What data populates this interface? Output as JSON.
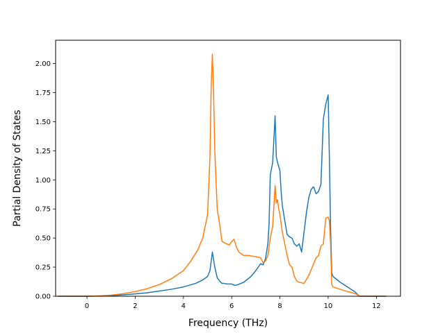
{
  "chart_data": {
    "type": "line",
    "title": "",
    "xlabel": "Frequency (THz)",
    "ylabel": "Partial Density of States",
    "xlim": [
      -1.3,
      13.0
    ],
    "ylim": [
      0.0,
      2.2
    ],
    "xticks": [
      0,
      2,
      4,
      6,
      8,
      10,
      12
    ],
    "yticks": [
      0.0,
      0.25,
      0.5,
      0.75,
      1.0,
      1.25,
      1.5,
      1.75,
      2.0
    ],
    "xtick_labels": [
      "0",
      "2",
      "4",
      "6",
      "8",
      "10",
      "12"
    ],
    "ytick_labels": [
      "0.00",
      "0.25",
      "0.50",
      "0.75",
      "1.00",
      "1.25",
      "1.50",
      "1.75",
      "2.00"
    ],
    "grid": false,
    "legend": "none",
    "series": [
      {
        "color": "#1f77b4",
        "x": [
          -1.2,
          0.0,
          0.5,
          1.0,
          1.5,
          2.0,
          2.5,
          3.0,
          3.5,
          4.0,
          4.5,
          4.8,
          5.0,
          5.1,
          5.2,
          5.3,
          5.4,
          5.5,
          5.6,
          5.7,
          5.8,
          6.0,
          6.1,
          6.2,
          6.5,
          6.8,
          7.0,
          7.2,
          7.3,
          7.4,
          7.5,
          7.55,
          7.6,
          7.7,
          7.8,
          7.85,
          7.9,
          8.0,
          8.05,
          8.1,
          8.2,
          8.3,
          8.4,
          8.5,
          8.6,
          8.7,
          8.8,
          8.9,
          9.0,
          9.1,
          9.2,
          9.3,
          9.4,
          9.5,
          9.6,
          9.7,
          9.8,
          9.9,
          10.0,
          10.05,
          10.1,
          10.15,
          10.2,
          10.5,
          10.8,
          11.1,
          11.3,
          12.4
        ],
        "y": [
          0.0,
          0.0,
          0.002,
          0.006,
          0.012,
          0.02,
          0.03,
          0.045,
          0.06,
          0.08,
          0.11,
          0.14,
          0.17,
          0.22,
          0.38,
          0.25,
          0.16,
          0.13,
          0.11,
          0.11,
          0.105,
          0.105,
          0.095,
          0.095,
          0.12,
          0.17,
          0.22,
          0.28,
          0.27,
          0.32,
          0.45,
          0.62,
          1.04,
          1.15,
          1.55,
          1.2,
          1.15,
          1.08,
          0.9,
          0.78,
          0.65,
          0.53,
          0.51,
          0.5,
          0.45,
          0.43,
          0.45,
          0.38,
          0.55,
          0.72,
          0.85,
          0.92,
          0.94,
          0.88,
          0.9,
          0.96,
          1.52,
          1.65,
          1.73,
          1.2,
          0.6,
          0.2,
          0.17,
          0.12,
          0.08,
          0.04,
          0.0,
          0.0
        ]
      },
      {
        "color": "#ff7f0e",
        "x": [
          -1.2,
          0.0,
          0.5,
          1.0,
          1.5,
          2.0,
          2.5,
          3.0,
          3.5,
          4.0,
          4.3,
          4.6,
          4.8,
          5.0,
          5.1,
          5.15,
          5.2,
          5.25,
          5.3,
          5.4,
          5.5,
          5.6,
          5.8,
          5.9,
          6.0,
          6.1,
          6.2,
          6.3,
          6.5,
          6.7,
          7.0,
          7.2,
          7.3,
          7.4,
          7.5,
          7.6,
          7.7,
          7.8,
          7.85,
          7.9,
          7.95,
          8.0,
          8.1,
          8.2,
          8.3,
          8.4,
          8.5,
          8.6,
          8.7,
          8.8,
          9.0,
          9.2,
          9.4,
          9.5,
          9.6,
          9.7,
          9.8,
          9.9,
          10.0,
          10.05,
          10.1,
          10.15,
          10.2,
          10.5,
          10.8,
          11.0,
          11.2,
          11.3,
          12.4
        ],
        "y": [
          0.0,
          0.0,
          0.003,
          0.01,
          0.022,
          0.04,
          0.065,
          0.1,
          0.15,
          0.22,
          0.3,
          0.4,
          0.5,
          0.7,
          1.2,
          1.8,
          2.08,
          1.75,
          1.25,
          0.75,
          0.62,
          0.47,
          0.45,
          0.44,
          0.47,
          0.49,
          0.42,
          0.38,
          0.35,
          0.35,
          0.34,
          0.33,
          0.29,
          0.3,
          0.35,
          0.5,
          0.6,
          0.95,
          0.8,
          0.83,
          0.75,
          0.7,
          0.55,
          0.45,
          0.35,
          0.27,
          0.25,
          0.17,
          0.13,
          0.12,
          0.11,
          0.18,
          0.28,
          0.33,
          0.35,
          0.43,
          0.45,
          0.67,
          0.68,
          0.65,
          0.45,
          0.1,
          0.08,
          0.06,
          0.04,
          0.03,
          0.015,
          0.0,
          0.0
        ]
      }
    ]
  }
}
